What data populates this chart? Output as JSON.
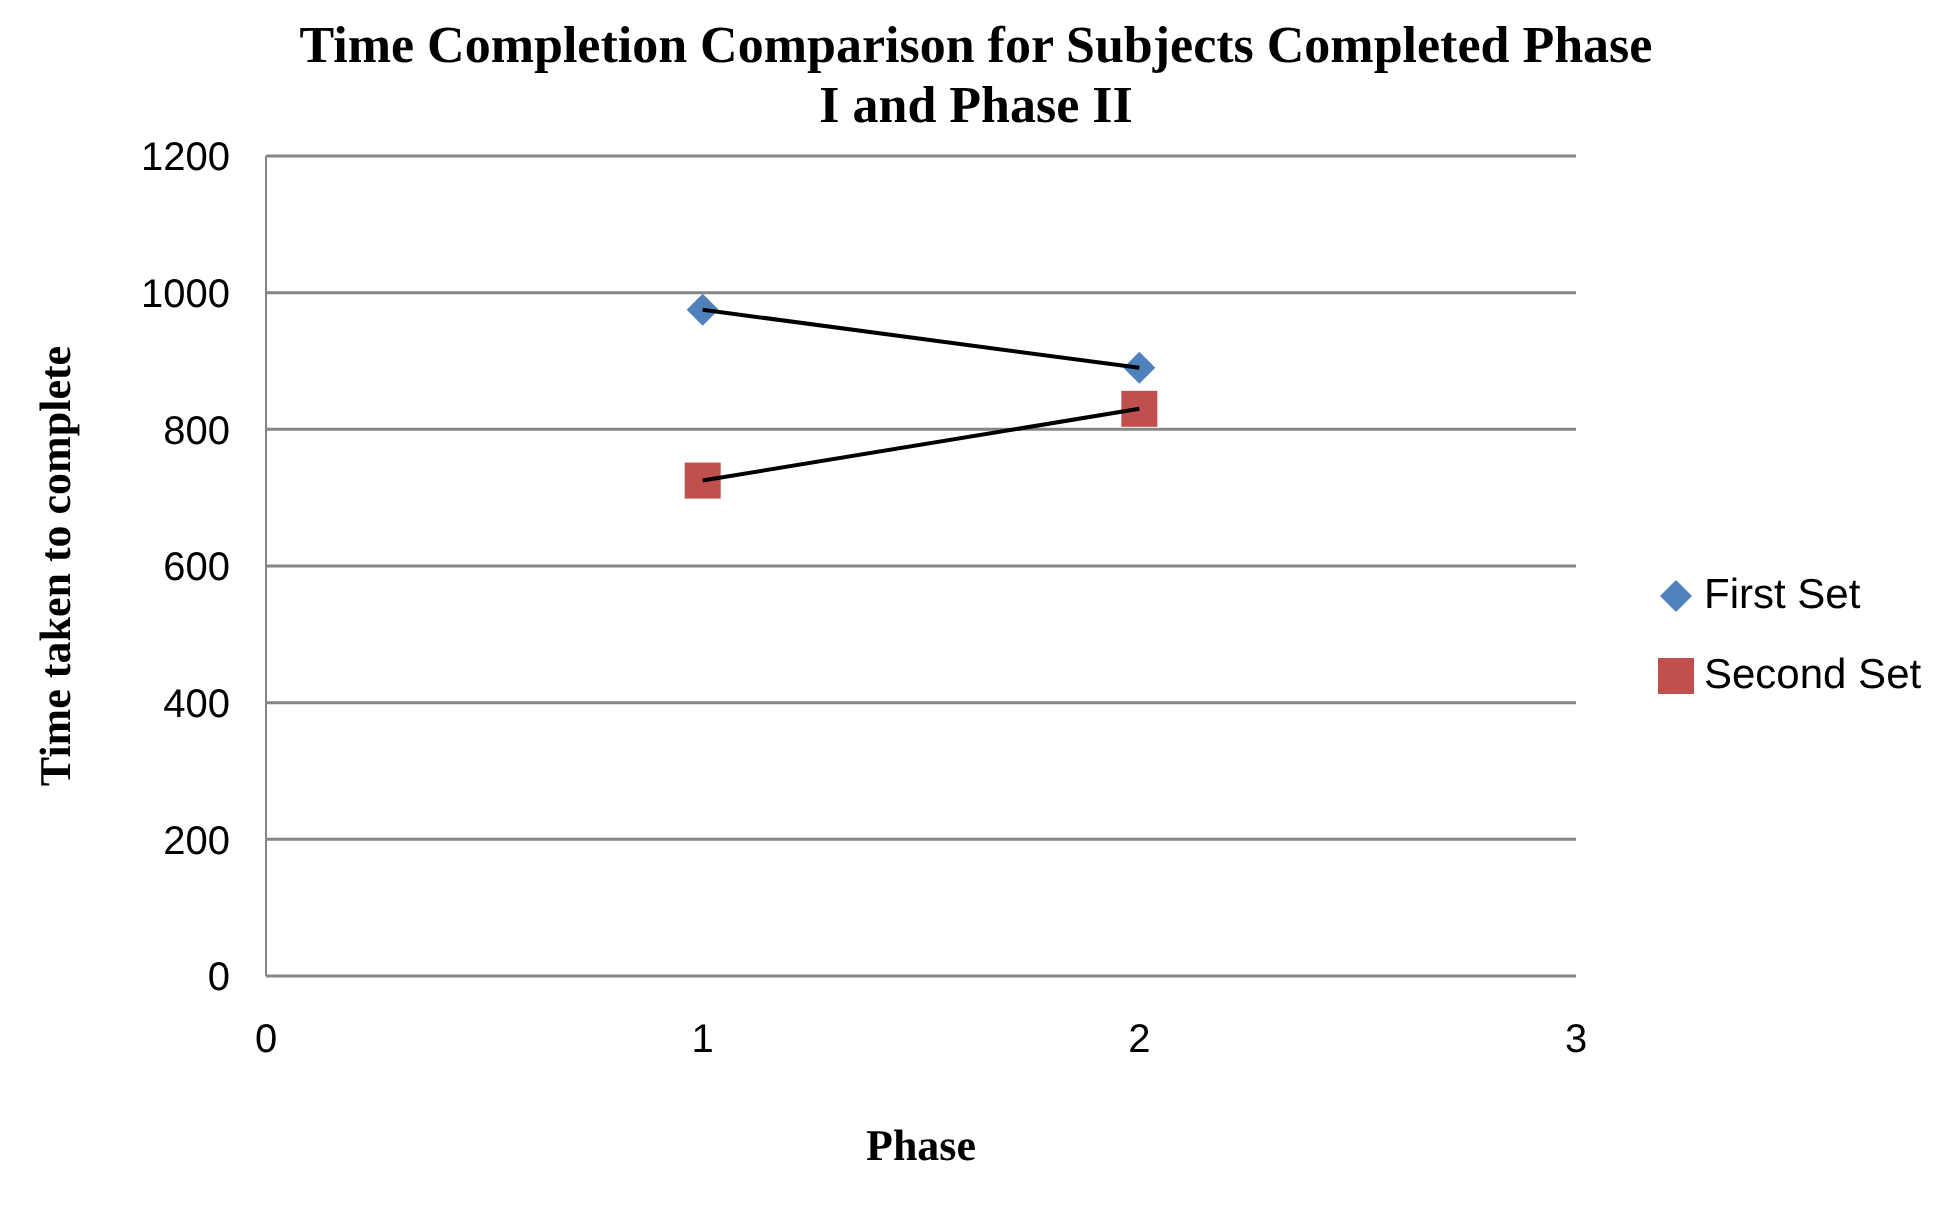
{
  "chart_data": {
    "type": "scatter",
    "title": "Time Completion Comparison for Subjects Completed Phase I and Phase II",
    "xlabel": "Phase",
    "ylabel": "Time taken to complete",
    "x": [
      1,
      2
    ],
    "series": [
      {
        "name": "First Set",
        "color": "#4f81bd",
        "marker": "diamond",
        "values": [
          975,
          890
        ]
      },
      {
        "name": "Second Set",
        "color": "#c0504d",
        "marker": "square",
        "values": [
          725,
          830
        ]
      },
      {
        "type": "line",
        "color": "#000000",
        "marker": "none",
        "values": [
          975,
          890
        ]
      },
      {
        "type": "line",
        "color": "#000000",
        "marker": "none",
        "values": [
          725,
          830
        ]
      }
    ],
    "xlim": [
      0,
      3
    ],
    "xticks": [
      0,
      1,
      2,
      3
    ],
    "ylim": [
      0,
      1200
    ],
    "yticks": [
      0,
      200,
      400,
      600,
      800,
      1000,
      1200
    ],
    "grid": "y",
    "legend": "right",
    "line_style": "solid"
  }
}
